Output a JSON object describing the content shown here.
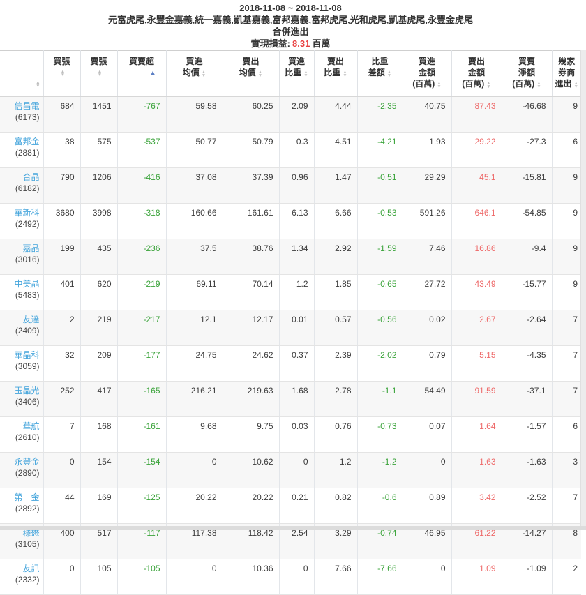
{
  "report": {
    "date_range": "2018-11-08 ~ 2018-11-08",
    "branches": "元富虎尾,永豐金嘉義,統一嘉義,凱基嘉義,富邦嘉義,富邦虎尾,光和虎尾,凱基虎尾,永豐金虎尾",
    "mode": "合併進出",
    "pnl_label": "實現損益:",
    "pnl_value": "8.31",
    "pnl_unit": "百萬"
  },
  "colors": {
    "link_blue": "#45a5dc",
    "negative_green": "#3aa33a",
    "sell_red": "#ee6a6a",
    "pnl_red": "#e84040",
    "sorted_arrow_blue": "#5b7fc4"
  },
  "table": {
    "columns": [
      {
        "key": "stock",
        "label": "",
        "sort": "none"
      },
      {
        "key": "buy_lots",
        "label": "買張\n",
        "sort": "both"
      },
      {
        "key": "sell_lots",
        "label": "賣張\n",
        "sort": "both"
      },
      {
        "key": "net_lots",
        "label": "買賣超",
        "sort": "asc"
      },
      {
        "key": "avg_buy",
        "label": "買進\n均價",
        "sort": "both"
      },
      {
        "key": "avg_sell",
        "label": "賣出\n均價",
        "sort": "both"
      },
      {
        "key": "buy_pct",
        "label": "買進\n比重",
        "sort": "both"
      },
      {
        "key": "sell_pct",
        "label": "賣出\n比重",
        "sort": "both"
      },
      {
        "key": "pct_diff",
        "label": "比重\n差額",
        "sort": "both"
      },
      {
        "key": "buy_amt",
        "label": "買進\n金額\n(百萬)",
        "sort": "both"
      },
      {
        "key": "sell_amt",
        "label": "賣出\n金額\n(百萬)",
        "sort": "both"
      },
      {
        "key": "net_amt",
        "label": "買賣\n淨額\n(百萬)",
        "sort": "both"
      },
      {
        "key": "brokers",
        "label": "幾家\n券商\n進出",
        "sort": "both"
      }
    ],
    "rows": [
      {
        "name": "信昌電",
        "code": "(6173)",
        "buy_lots": "684",
        "sell_lots": "1451",
        "net_lots": "-767",
        "avg_buy": "59.58",
        "avg_sell": "60.25",
        "buy_pct": "2.09",
        "sell_pct": "4.44",
        "pct_diff": "-2.35",
        "buy_amt": "40.75",
        "sell_amt": "87.43",
        "net_amt": "-46.68",
        "brokers": "9"
      },
      {
        "name": "富邦金",
        "code": "(2881)",
        "buy_lots": "38",
        "sell_lots": "575",
        "net_lots": "-537",
        "avg_buy": "50.77",
        "avg_sell": "50.79",
        "buy_pct": "0.3",
        "sell_pct": "4.51",
        "pct_diff": "-4.21",
        "buy_amt": "1.93",
        "sell_amt": "29.22",
        "net_amt": "-27.3",
        "brokers": "6"
      },
      {
        "name": "合晶",
        "code": "(6182)",
        "buy_lots": "790",
        "sell_lots": "1206",
        "net_lots": "-416",
        "avg_buy": "37.08",
        "avg_sell": "37.39",
        "buy_pct": "0.96",
        "sell_pct": "1.47",
        "pct_diff": "-0.51",
        "buy_amt": "29.29",
        "sell_amt": "45.1",
        "net_amt": "-15.81",
        "brokers": "9"
      },
      {
        "name": "華新科",
        "code": "(2492)",
        "buy_lots": "3680",
        "sell_lots": "3998",
        "net_lots": "-318",
        "avg_buy": "160.66",
        "avg_sell": "161.61",
        "buy_pct": "6.13",
        "sell_pct": "6.66",
        "pct_diff": "-0.53",
        "buy_amt": "591.26",
        "sell_amt": "646.1",
        "net_amt": "-54.85",
        "brokers": "9"
      },
      {
        "name": "嘉晶",
        "code": "(3016)",
        "buy_lots": "199",
        "sell_lots": "435",
        "net_lots": "-236",
        "avg_buy": "37.5",
        "avg_sell": "38.76",
        "buy_pct": "1.34",
        "sell_pct": "2.92",
        "pct_diff": "-1.59",
        "buy_amt": "7.46",
        "sell_amt": "16.86",
        "net_amt": "-9.4",
        "brokers": "9"
      },
      {
        "name": "中美晶",
        "code": "(5483)",
        "buy_lots": "401",
        "sell_lots": "620",
        "net_lots": "-219",
        "avg_buy": "69.11",
        "avg_sell": "70.14",
        "buy_pct": "1.2",
        "sell_pct": "1.85",
        "pct_diff": "-0.65",
        "buy_amt": "27.72",
        "sell_amt": "43.49",
        "net_amt": "-15.77",
        "brokers": "9"
      },
      {
        "name": "友達",
        "code": "(2409)",
        "buy_lots": "2",
        "sell_lots": "219",
        "net_lots": "-217",
        "avg_buy": "12.1",
        "avg_sell": "12.17",
        "buy_pct": "0.01",
        "sell_pct": "0.57",
        "pct_diff": "-0.56",
        "buy_amt": "0.02",
        "sell_amt": "2.67",
        "net_amt": "-2.64",
        "brokers": "7"
      },
      {
        "name": "華晶科",
        "code": "(3059)",
        "buy_lots": "32",
        "sell_lots": "209",
        "net_lots": "-177",
        "avg_buy": "24.75",
        "avg_sell": "24.62",
        "buy_pct": "0.37",
        "sell_pct": "2.39",
        "pct_diff": "-2.02",
        "buy_amt": "0.79",
        "sell_amt": "5.15",
        "net_amt": "-4.35",
        "brokers": "7"
      },
      {
        "name": "玉晶光",
        "code": "(3406)",
        "buy_lots": "252",
        "sell_lots": "417",
        "net_lots": "-165",
        "avg_buy": "216.21",
        "avg_sell": "219.63",
        "buy_pct": "1.68",
        "sell_pct": "2.78",
        "pct_diff": "-1.1",
        "buy_amt": "54.49",
        "sell_amt": "91.59",
        "net_amt": "-37.1",
        "brokers": "7"
      },
      {
        "name": "華航",
        "code": "(2610)",
        "buy_lots": "7",
        "sell_lots": "168",
        "net_lots": "-161",
        "avg_buy": "9.68",
        "avg_sell": "9.75",
        "buy_pct": "0.03",
        "sell_pct": "0.76",
        "pct_diff": "-0.73",
        "buy_amt": "0.07",
        "sell_amt": "1.64",
        "net_amt": "-1.57",
        "brokers": "6"
      },
      {
        "name": "永豐金",
        "code": "(2890)",
        "buy_lots": "0",
        "sell_lots": "154",
        "net_lots": "-154",
        "avg_buy": "0",
        "avg_sell": "10.62",
        "buy_pct": "0",
        "sell_pct": "1.2",
        "pct_diff": "-1.2",
        "buy_amt": "0",
        "sell_amt": "1.63",
        "net_amt": "-1.63",
        "brokers": "3"
      },
      {
        "name": "第一金",
        "code": "(2892)",
        "buy_lots": "44",
        "sell_lots": "169",
        "net_lots": "-125",
        "avg_buy": "20.22",
        "avg_sell": "20.22",
        "buy_pct": "0.21",
        "sell_pct": "0.82",
        "pct_diff": "-0.6",
        "buy_amt": "0.89",
        "sell_amt": "3.42",
        "net_amt": "-2.52",
        "brokers": "7"
      },
      {
        "name": "穩懋",
        "code": "(3105)",
        "buy_lots": "400",
        "sell_lots": "517",
        "net_lots": "-117",
        "avg_buy": "117.38",
        "avg_sell": "118.42",
        "buy_pct": "2.54",
        "sell_pct": "3.29",
        "pct_diff": "-0.74",
        "buy_amt": "46.95",
        "sell_amt": "61.22",
        "net_amt": "-14.27",
        "brokers": "8"
      },
      {
        "name": "友訊",
        "code": "(2332)",
        "buy_lots": "0",
        "sell_lots": "105",
        "net_lots": "-105",
        "avg_buy": "0",
        "avg_sell": "10.36",
        "buy_pct": "0",
        "sell_pct": "7.66",
        "pct_diff": "-7.66",
        "buy_amt": "0",
        "sell_amt": "1.09",
        "net_amt": "-1.09",
        "brokers": "2"
      }
    ]
  }
}
